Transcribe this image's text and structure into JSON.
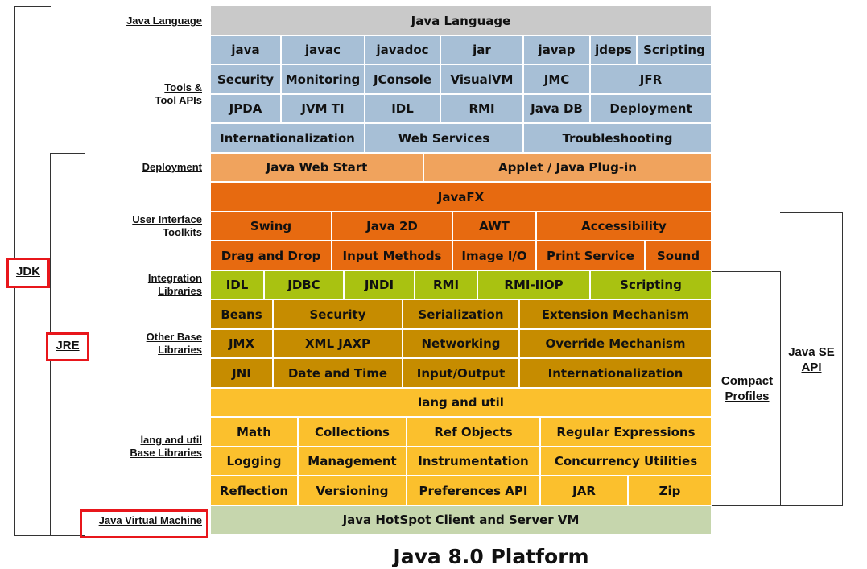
{
  "title": "Java 8.0 Platform",
  "colors": {
    "gray": "#c9c9c9",
    "blue": "#a7bfd6",
    "lightorange": "#f0a35d",
    "orange": "#e76a10",
    "green": "#a9c211",
    "brown": "#c68c00",
    "yellow": "#fbc02d",
    "sage": "#c6d6ad",
    "highlight": "#e8161b"
  },
  "row_labels": {
    "java_language": "Java Language",
    "tools": [
      "Tools &",
      "Tool APIs"
    ],
    "deployment": "Deployment",
    "ui_toolkits": [
      "User Interface",
      "Toolkits"
    ],
    "integration": [
      "Integration",
      "Libraries"
    ],
    "other_base": [
      "Other Base",
      "Libraries"
    ],
    "lang_util_base": [
      "lang and util",
      "Base Libraries"
    ],
    "jvm": "Java Virtual Machine"
  },
  "side_labels": {
    "jdk": "JDK",
    "jre": "JRE",
    "compact": [
      "Compact",
      "Profiles"
    ],
    "javase": [
      "Java SE",
      "API"
    ]
  },
  "rows": [
    {
      "color": "gray",
      "cells": [
        {
          "label": "Java Language",
          "span": 12
        }
      ]
    },
    {
      "color": "blue",
      "cells": [
        {
          "label": "java",
          "span": 1.7
        },
        {
          "label": "javac",
          "span": 2
        },
        {
          "label": "javadoc",
          "span": 1.8
        },
        {
          "label": "jar",
          "span": 2
        },
        {
          "label": "javap",
          "span": 1.6
        },
        {
          "label": "jdeps",
          "span": 1.1
        },
        {
          "label": "Scripting",
          "span": 1.8
        }
      ]
    },
    {
      "color": "blue",
      "cells": [
        {
          "label": "Security",
          "span": 1.7
        },
        {
          "label": "Monitoring",
          "span": 2
        },
        {
          "label": "JConsole",
          "span": 1.8
        },
        {
          "label": "VisualVM",
          "span": 2
        },
        {
          "label": "JMC",
          "span": 1.6
        },
        {
          "label": "JFR",
          "span": 2.9
        }
      ]
    },
    {
      "color": "blue",
      "cells": [
        {
          "label": "JPDA",
          "span": 1.7
        },
        {
          "label": "JVM TI",
          "span": 2
        },
        {
          "label": "IDL",
          "span": 1.8
        },
        {
          "label": "RMI",
          "span": 2
        },
        {
          "label": "Java DB",
          "span": 1.6
        },
        {
          "label": "Deployment",
          "span": 2.9
        }
      ]
    },
    {
      "color": "blue",
      "cells": [
        {
          "label": "Internationalization",
          "span": 3.7
        },
        {
          "label": "Web Services",
          "span": 3.8
        },
        {
          "label": "Troubleshooting",
          "span": 4.5
        }
      ]
    },
    {
      "color": "lightorange",
      "cells": [
        {
          "label": "Java Web Start",
          "span": 5.1
        },
        {
          "label": "Applet / Java Plug-in",
          "span": 6.9
        }
      ]
    },
    {
      "color": "orange",
      "cells": [
        {
          "label": "JavaFX",
          "span": 12
        }
      ]
    },
    {
      "color": "orange",
      "cells": [
        {
          "label": "Swing",
          "span": 2.9
        },
        {
          "label": "Java 2D",
          "span": 2.9
        },
        {
          "label": "AWT",
          "span": 2
        },
        {
          "label": "Accessibility",
          "span": 4.2
        }
      ]
    },
    {
      "color": "orange",
      "cells": [
        {
          "label": "Drag and Drop",
          "span": 2.9
        },
        {
          "label": "Input Methods",
          "span": 2.9
        },
        {
          "label": "Image I/O",
          "span": 2
        },
        {
          "label": "Print Service",
          "span": 2.6
        },
        {
          "label": "Sound",
          "span": 1.6
        }
      ]
    },
    {
      "color": "green",
      "cells": [
        {
          "label": "IDL",
          "span": 1.3
        },
        {
          "label": "JDBC",
          "span": 1.9
        },
        {
          "label": "JNDI",
          "span": 1.7
        },
        {
          "label": "RMI",
          "span": 1.5
        },
        {
          "label": "RMI-IIOP",
          "span": 2.7
        },
        {
          "label": "Scripting",
          "span": 2.9
        }
      ]
    },
    {
      "color": "brown",
      "cells": [
        {
          "label": "Beans",
          "span": 1.5
        },
        {
          "label": "Security",
          "span": 3.1
        },
        {
          "label": "Serialization",
          "span": 2.8
        },
        {
          "label": "Extension Mechanism",
          "span": 4.6
        }
      ]
    },
    {
      "color": "brown",
      "cells": [
        {
          "label": "JMX",
          "span": 1.5
        },
        {
          "label": "XML JAXP",
          "span": 3.1
        },
        {
          "label": "Networking",
          "span": 2.8
        },
        {
          "label": "Override Mechanism",
          "span": 4.6
        }
      ]
    },
    {
      "color": "brown",
      "cells": [
        {
          "label": "JNI",
          "span": 1.5
        },
        {
          "label": "Date and Time",
          "span": 3.1
        },
        {
          "label": "Input/Output",
          "span": 2.8
        },
        {
          "label": "Internationalization",
          "span": 4.6
        }
      ]
    },
    {
      "color": "yellow",
      "cells": [
        {
          "label": "lang and util",
          "span": 12
        }
      ]
    },
    {
      "color": "yellow",
      "cells": [
        {
          "label": "Math",
          "span": 2.1
        },
        {
          "label": "Collections",
          "span": 2.6
        },
        {
          "label": "Ref Objects",
          "span": 3.2
        },
        {
          "label": "Regular Expressions",
          "span": 4.1
        }
      ]
    },
    {
      "color": "yellow",
      "cells": [
        {
          "label": "Logging",
          "span": 2.1
        },
        {
          "label": "Management",
          "span": 2.6
        },
        {
          "label": "Instrumentation",
          "span": 3.2
        },
        {
          "label": "Concurrency Utilities",
          "span": 4.1
        }
      ]
    },
    {
      "color": "yellow",
      "cells": [
        {
          "label": "Reflection",
          "span": 2.1
        },
        {
          "label": "Versioning",
          "span": 2.6
        },
        {
          "label": "Preferences API",
          "span": 3.2
        },
        {
          "label": "JAR",
          "span": 2.1
        },
        {
          "label": "Zip",
          "span": 2
        }
      ]
    },
    {
      "color": "sage",
      "cells": [
        {
          "label": "Java HotSpot Client and Server VM",
          "span": 12
        }
      ]
    }
  ]
}
